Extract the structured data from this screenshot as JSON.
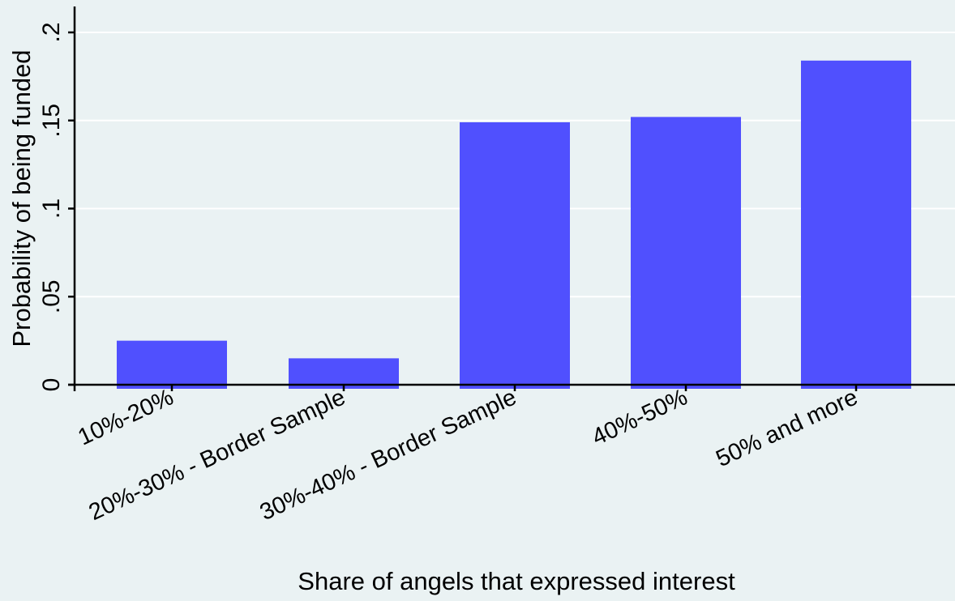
{
  "chart_data": {
    "type": "bar",
    "title": "",
    "xlabel": "Share of angels that expressed interest",
    "ylabel": "Probability of being funded",
    "categories": [
      "10%-20%",
      "20%-30% - Border Sample",
      "30%-40% - Border Sample",
      "40%-50%",
      "50% and more"
    ],
    "values": [
      0.025,
      0.015,
      0.149,
      0.152,
      0.184
    ],
    "ylim": [
      0,
      0.2
    ],
    "yticks": [
      0,
      0.05,
      0.1,
      0.15,
      0.2
    ],
    "ytick_labels": [
      "0",
      ".05",
      ".1",
      ".15",
      ".2"
    ],
    "grid": true,
    "legend": "none",
    "colors": {
      "bar": "#5050fe",
      "background": "#eaf2f3",
      "grid": "#ffffff",
      "axis": "#000000"
    }
  }
}
